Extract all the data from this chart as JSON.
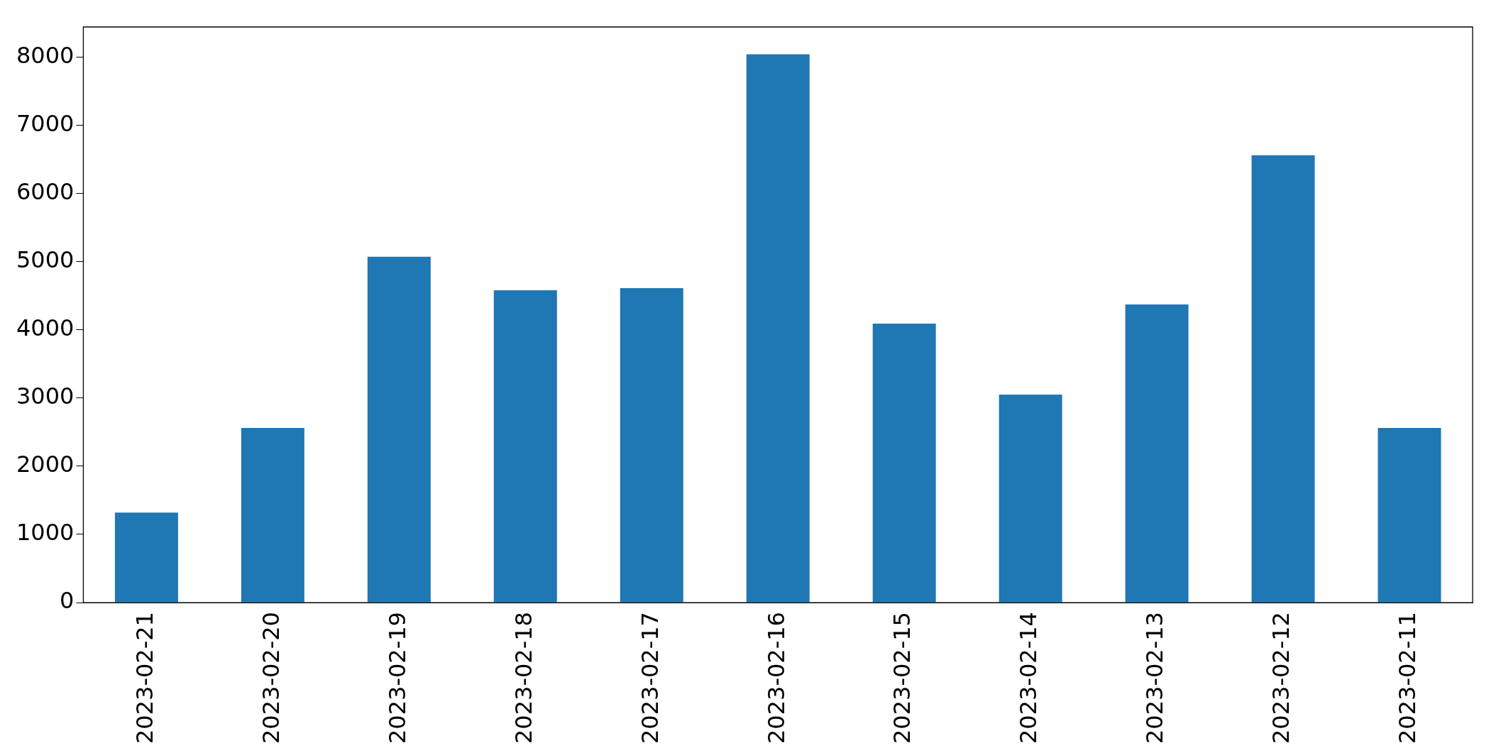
{
  "chart_data": {
    "type": "bar",
    "categories": [
      "2023-02-21",
      "2023-02-20",
      "2023-02-19",
      "2023-02-18",
      "2023-02-17",
      "2023-02-16",
      "2023-02-15",
      "2023-02-14",
      "2023-02-13",
      "2023-02-12",
      "2023-02-11"
    ],
    "values": [
      1320,
      2560,
      5070,
      4580,
      4610,
      8040,
      4090,
      3050,
      4370,
      6560,
      2560
    ],
    "color": "#1f77b4",
    "ylim": [
      0,
      8440
    ],
    "yticks": [
      0,
      1000,
      2000,
      3000,
      4000,
      5000,
      6000,
      7000,
      8000
    ],
    "grid": false,
    "legend": false
  }
}
